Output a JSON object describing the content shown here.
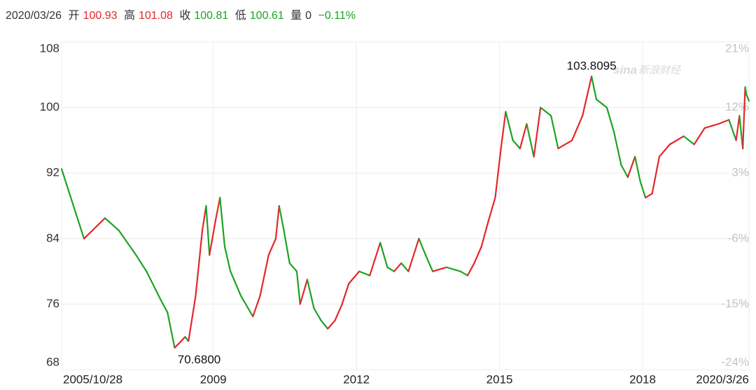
{
  "header": {
    "date": "2020/03/26",
    "open_label": "开",
    "open": "100.93",
    "high_label": "高",
    "high": "101.08",
    "close_label": "收",
    "close": "100.81",
    "low_label": "低",
    "low": "100.61",
    "volume_label": "量",
    "volume": "0",
    "change": "−0.11%"
  },
  "watermark": {
    "brand": "sina",
    "name": "新浪财经"
  },
  "chart_data": {
    "type": "line",
    "x": [
      2005.82,
      2006.29,
      2006.73,
      2007.02,
      2007.38,
      2007.6,
      2007.9,
      2008.04,
      2008.19,
      2008.41,
      2008.48,
      2008.63,
      2008.77,
      2008.85,
      2008.92,
      2009.04,
      2009.14,
      2009.24,
      2009.36,
      2009.58,
      2009.73,
      2009.83,
      2009.98,
      2010.16,
      2010.31,
      2010.38,
      2010.48,
      2010.6,
      2010.75,
      2010.82,
      2010.97,
      2011.11,
      2011.26,
      2011.4,
      2011.55,
      2011.7,
      2011.84,
      2012.06,
      2012.28,
      2012.5,
      2012.65,
      2012.79,
      2012.94,
      2013.09,
      2013.31,
      2013.45,
      2013.6,
      2013.89,
      2014.18,
      2014.33,
      2014.47,
      2014.62,
      2014.76,
      2014.91,
      2015.03,
      2015.13,
      2015.28,
      2015.43,
      2015.57,
      2015.72,
      2015.86,
      2016.08,
      2016.23,
      2016.52,
      2016.74,
      2016.93,
      2017.03,
      2017.25,
      2017.4,
      2017.55,
      2017.69,
      2017.84,
      2017.95,
      2018.06,
      2018.2,
      2018.35,
      2018.57,
      2018.86,
      2019.08,
      2019.3,
      2019.59,
      2019.81,
      2019.96,
      2020.03,
      2020.1,
      2020.15,
      2020.18,
      2020.23
    ],
    "series": [
      {
        "values": [
          92.5,
          84,
          86.5,
          85,
          82,
          80,
          76.5,
          75,
          70.68,
          72,
          71.5,
          77,
          85,
          88,
          82,
          86,
          89,
          83,
          80,
          77,
          75.5,
          74.5,
          77,
          82,
          84,
          88,
          85,
          81,
          80,
          76,
          79,
          75.5,
          74,
          73,
          74,
          76,
          78.5,
          80,
          79.5,
          83.5,
          80.5,
          80,
          81,
          80,
          84,
          82,
          80,
          80.5,
          80,
          79.5,
          81,
          83,
          86,
          89,
          95,
          99.5,
          96,
          95,
          98,
          94,
          100,
          99,
          95,
          96,
          99,
          103.81,
          101,
          100,
          97,
          93,
          91.5,
          94,
          91,
          89,
          89.5,
          94,
          95.5,
          96.5,
          95.5,
          97.5,
          98,
          98.5,
          96,
          99,
          95,
          102.5,
          101.5,
          100.81
        ]
      }
    ],
    "up_color": "#e5262b",
    "down_color": "#1ca322",
    "ylim": [
      68,
      108
    ],
    "yticks": [
      68,
      76,
      84,
      92,
      100,
      108
    ],
    "y2lim": [
      -24,
      21
    ],
    "y2ticks": [
      {
        "value": -24,
        "label": "-24%"
      },
      {
        "value": -15,
        "label": "-15%"
      },
      {
        "value": -6,
        "label": "-6%"
      },
      {
        "value": 3,
        "label": "3%"
      },
      {
        "value": 12,
        "label": "12%"
      },
      {
        "value": 21,
        "label": "21%"
      }
    ],
    "xlim": [
      2005.82,
      2020.23
    ],
    "xticks": [
      {
        "value": 2005.82,
        "label": "2005/10/28"
      },
      2009,
      2012,
      2015,
      2018,
      {
        "value": 2020.23,
        "label": "2020/3/26"
      }
    ],
    "annotations": [
      {
        "label": "103.8095",
        "value": 103.8095,
        "x": 2016.93
      },
      {
        "label": "70.6800",
        "value": 70.68,
        "x": 2008.19
      }
    ],
    "grid": true
  }
}
